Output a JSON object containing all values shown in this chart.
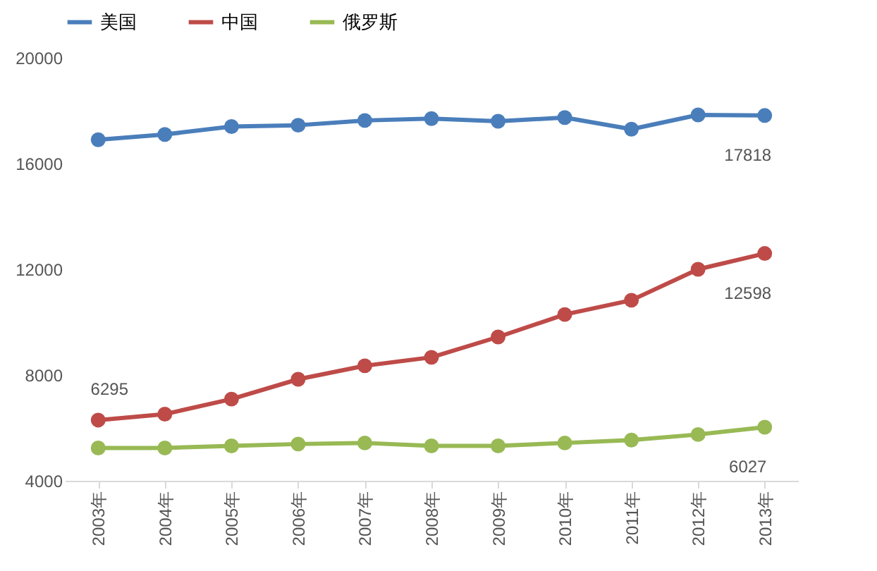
{
  "chart_data": {
    "type": "line",
    "categories": [
      "2003年",
      "2004年",
      "2005年",
      "2006年",
      "2007年",
      "2008年",
      "2009年",
      "2010年",
      "2011年",
      "2012年",
      "2013年"
    ],
    "series": [
      {
        "name": "美国",
        "color": "#4a7ebb",
        "values": [
          16900,
          17100,
          17400,
          17450,
          17630,
          17700,
          17600,
          17740,
          17300,
          17840,
          17818
        ],
        "value_labels": [
          null,
          null,
          null,
          null,
          null,
          null,
          null,
          null,
          null,
          null,
          "17818"
        ]
      },
      {
        "name": "中国",
        "color": "#be4b48",
        "values": [
          6295,
          6520,
          7090,
          7840,
          8350,
          8670,
          9440,
          10290,
          10830,
          12000,
          12598
        ],
        "value_labels": [
          "6295",
          null,
          null,
          null,
          null,
          null,
          null,
          null,
          null,
          null,
          "12598"
        ]
      },
      {
        "name": "俄罗斯",
        "color": "#98b954",
        "values": [
          5240,
          5240,
          5320,
          5390,
          5430,
          5320,
          5320,
          5430,
          5540,
          5750,
          6027
        ],
        "value_labels": [
          null,
          null,
          null,
          null,
          null,
          null,
          null,
          null,
          null,
          null,
          "6027"
        ]
      }
    ],
    "ylim": [
      4000,
      20000
    ],
    "yticks": [
      4000,
      8000,
      12000,
      16000,
      20000
    ],
    "grid": false,
    "legend": "top",
    "marker": "circle",
    "line_style": "solid"
  }
}
